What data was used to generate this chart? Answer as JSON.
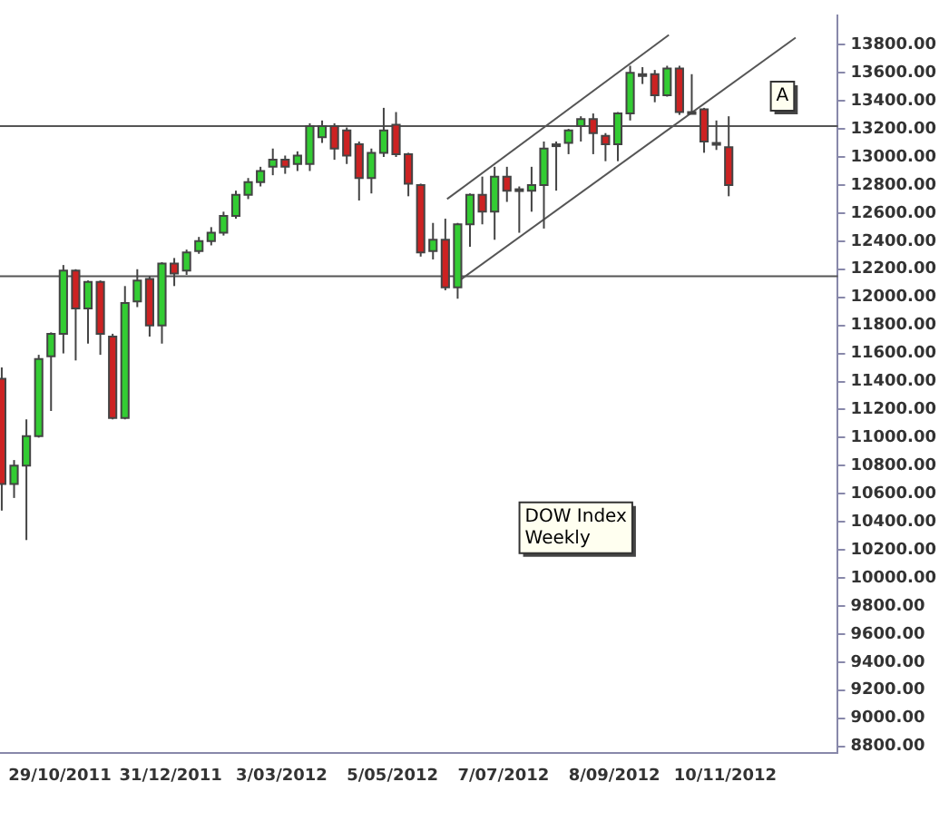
{
  "chart_data": {
    "type": "candlestick",
    "x": [
      "2011-09-26",
      "2011-10-03",
      "2011-10-10",
      "2011-10-17",
      "2011-10-24",
      "2011-10-31",
      "2011-11-07",
      "2011-11-14",
      "2011-11-21",
      "2011-11-28",
      "2011-12-05",
      "2011-12-12",
      "2011-12-19",
      "2011-12-26",
      "2012-01-02",
      "2012-01-09",
      "2012-01-16",
      "2012-01-23",
      "2012-01-30",
      "2012-02-06",
      "2012-02-13",
      "2012-02-20",
      "2012-02-27",
      "2012-03-05",
      "2012-03-12",
      "2012-03-19",
      "2012-03-26",
      "2012-04-02",
      "2012-04-09",
      "2012-04-16",
      "2012-04-23",
      "2012-04-30",
      "2012-05-07",
      "2012-05-14",
      "2012-05-21",
      "2012-05-28",
      "2012-06-04",
      "2012-06-11",
      "2012-06-18",
      "2012-06-25",
      "2012-07-02",
      "2012-07-09",
      "2012-07-16",
      "2012-07-23",
      "2012-07-30",
      "2012-08-06",
      "2012-08-13",
      "2012-08-20",
      "2012-08-27",
      "2012-09-03",
      "2012-09-10",
      "2012-09-17",
      "2012-09-24",
      "2012-10-01",
      "2012-10-08",
      "2012-10-15",
      "2012-10-22",
      "2012-10-29",
      "2012-11-05",
      "2012-11-12"
    ],
    "ohlc": [
      [
        11420,
        11500,
        10480,
        10670
      ],
      [
        10670,
        10840,
        10570,
        10800
      ],
      [
        10800,
        11130,
        10270,
        11010
      ],
      [
        11010,
        11590,
        11000,
        11560
      ],
      [
        11580,
        11750,
        11190,
        11740
      ],
      [
        11740,
        12230,
        11600,
        12190
      ],
      [
        12190,
        12200,
        11550,
        11920
      ],
      [
        11920,
        12120,
        11670,
        12110
      ],
      [
        12110,
        12120,
        11590,
        11740
      ],
      [
        11720,
        11740,
        11130,
        11140
      ],
      [
        11140,
        12080,
        11130,
        11960
      ],
      [
        11970,
        12200,
        11930,
        12120
      ],
      [
        12130,
        12150,
        11720,
        11800
      ],
      [
        11800,
        12250,
        11670,
        12240
      ],
      [
        12240,
        12280,
        12080,
        12170
      ],
      [
        12190,
        12340,
        12160,
        12320
      ],
      [
        12330,
        12430,
        12310,
        12400
      ],
      [
        12400,
        12500,
        12370,
        12460
      ],
      [
        12460,
        12610,
        12440,
        12580
      ],
      [
        12580,
        12760,
        12560,
        12730
      ],
      [
        12730,
        12850,
        12700,
        12820
      ],
      [
        12820,
        12930,
        12790,
        12900
      ],
      [
        12930,
        13060,
        12870,
        12980
      ],
      [
        12980,
        13010,
        12880,
        12930
      ],
      [
        12950,
        13040,
        12900,
        13010
      ],
      [
        12950,
        13240,
        12900,
        13220
      ],
      [
        13140,
        13260,
        13100,
        13220
      ],
      [
        13220,
        13240,
        12980,
        13060
      ],
      [
        13190,
        13210,
        12950,
        13010
      ],
      [
        13090,
        13110,
        12690,
        12850
      ],
      [
        12850,
        13060,
        12740,
        13030
      ],
      [
        13030,
        13350,
        13000,
        13190
      ],
      [
        13230,
        13320,
        13000,
        13020
      ],
      [
        13020,
        13030,
        12720,
        12810
      ],
      [
        12800,
        12810,
        12290,
        12320
      ],
      [
        12330,
        12530,
        12270,
        12410
      ],
      [
        12410,
        12560,
        12050,
        12070
      ],
      [
        12070,
        12530,
        11990,
        12520
      ],
      [
        12520,
        12740,
        12360,
        12730
      ],
      [
        12730,
        12860,
        12520,
        12610
      ],
      [
        12610,
        12930,
        12410,
        12860
      ],
      [
        12860,
        12930,
        12680,
        12760
      ],
      [
        12770,
        12790,
        12460,
        12770
      ],
      [
        12760,
        12930,
        12610,
        12800
      ],
      [
        12800,
        13110,
        12490,
        13060
      ],
      [
        13080,
        13110,
        12760,
        13090
      ],
      [
        13100,
        13200,
        13020,
        13190
      ],
      [
        13220,
        13290,
        13110,
        13270
      ],
      [
        13270,
        13310,
        13020,
        13170
      ],
      [
        13150,
        13170,
        12970,
        13090
      ],
      [
        13090,
        13320,
        12970,
        13310
      ],
      [
        13310,
        13650,
        13260,
        13600
      ],
      [
        13590,
        13640,
        13520,
        13590
      ],
      [
        13590,
        13620,
        13390,
        13440
      ],
      [
        13440,
        13650,
        13430,
        13630
      ],
      [
        13630,
        13650,
        13300,
        13320
      ],
      [
        13320,
        13590,
        13310,
        13320
      ],
      [
        13340,
        13350,
        13030,
        13110
      ],
      [
        13100,
        13260,
        13050,
        13100
      ],
      [
        13070,
        13290,
        12720,
        12800
      ]
    ],
    "colors": [
      "#cc2222",
      "#33cc33",
      "#33cc33",
      "#33cc33",
      "#33cc33",
      "#33cc33",
      "#cc2222",
      "#33cc33",
      "#cc2222",
      "#cc2222",
      "#33cc33",
      "#33cc33",
      "#cc2222",
      "#33cc33",
      "#cc2222",
      "#33cc33",
      "#33cc33",
      "#33cc33",
      "#33cc33",
      "#33cc33",
      "#33cc33",
      "#33cc33",
      "#33cc33",
      "#cc2222",
      "#33cc33",
      "#33cc33",
      "#33cc33",
      "#cc2222",
      "#cc2222",
      "#cc2222",
      "#33cc33",
      "#33cc33",
      "#cc2222",
      "#cc2222",
      "#cc2222",
      "#33cc33",
      "#cc2222",
      "#33cc33",
      "#33cc33",
      "#cc2222",
      "#33cc33",
      "#cc2222",
      "#33cc33",
      "#33cc33",
      "#33cc33",
      "#33cc33",
      "#33cc33",
      "#33cc33",
      "#cc2222",
      "#cc2222",
      "#33cc33",
      "#33cc33",
      "#33cc33",
      "#cc2222",
      "#33cc33",
      "#cc2222",
      "#33cc33",
      "#cc2222",
      "#33cc33",
      "#cc2222"
    ],
    "series": [
      {
        "type": "line",
        "x": [
          "2012-06-05",
          "2012-10-09"
        ],
        "values": [
          12700,
          13870
        ],
        "color": "#555555"
      },
      {
        "type": "line",
        "x": [
          "2012-06-12",
          "2012-12-20"
        ],
        "values": [
          12120,
          13850
        ],
        "color": "#555555"
      }
    ],
    "ref_lines": [
      {
        "axis": "y",
        "value": 13220,
        "color": "#555555"
      },
      {
        "axis": "y",
        "value": 12150,
        "color": "#555555"
      }
    ],
    "annotations": [
      "A",
      "DOW Index\nWeekly"
    ],
    "xlim": [
      "2011-09-25",
      "2013-01-13"
    ],
    "xticks": [
      {
        "value": "2011-10-29",
        "label": "29/10/2011"
      },
      {
        "value": "2011-12-31",
        "label": "31/12/2011"
      },
      {
        "value": "2012-03-03",
        "label": "3/03/2012"
      },
      {
        "value": "2012-05-05",
        "label": "5/05/2012"
      },
      {
        "value": "2012-07-07",
        "label": "7/07/2012"
      },
      {
        "value": "2012-09-08",
        "label": "8/09/2012"
      },
      {
        "value": "2012-11-10",
        "label": "10/11/2012"
      }
    ],
    "ylim": [
      8750,
      14010
    ],
    "yticks": [
      {
        "value": 8800,
        "label": "8800.00"
      },
      {
        "value": 9000,
        "label": "9000.00"
      },
      {
        "value": 9200,
        "label": "9200.00"
      },
      {
        "value": 9400,
        "label": "9400.00"
      },
      {
        "value": 9600,
        "label": "9600.00"
      },
      {
        "value": 9800,
        "label": "9800.00"
      },
      {
        "value": 10000,
        "label": "10000.00"
      },
      {
        "value": 10200,
        "label": "10200.00"
      },
      {
        "value": 10400,
        "label": "10400.00"
      },
      {
        "value": 10600,
        "label": "10600.00"
      },
      {
        "value": 10800,
        "label": "10800.00"
      },
      {
        "value": 11000,
        "label": "11000.00"
      },
      {
        "value": 11200,
        "label": "11200.00"
      },
      {
        "value": 11400,
        "label": "11400.00"
      },
      {
        "value": 11600,
        "label": "11600.00"
      },
      {
        "value": 11800,
        "label": "11800.00"
      },
      {
        "value": 12000,
        "label": "12000.00"
      },
      {
        "value": 12200,
        "label": "12200.00"
      },
      {
        "value": 12400,
        "label": "12400.00"
      },
      {
        "value": 12600,
        "label": "12600.00"
      },
      {
        "value": 12800,
        "label": "12800.00"
      },
      {
        "value": 13000,
        "label": "13000.00"
      },
      {
        "value": 13200,
        "label": "13200.00"
      },
      {
        "value": 13400,
        "label": "13400.00"
      },
      {
        "value": 13600,
        "label": "13600.00"
      },
      {
        "value": 13800,
        "label": "13800.00"
      }
    ],
    "grid": false,
    "legend": false
  }
}
